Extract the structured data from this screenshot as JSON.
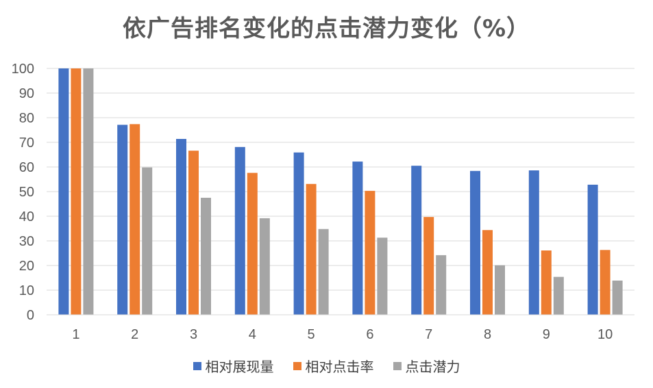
{
  "chart_data": {
    "type": "bar",
    "title": "依广告排名变化的点击潜力变化（%）",
    "categories": [
      "1",
      "2",
      "3",
      "4",
      "5",
      "6",
      "7",
      "8",
      "9",
      "10"
    ],
    "series": [
      {
        "name": "相对展现量",
        "color": "#4472C4",
        "values": [
          100,
          77.1,
          71.4,
          68.1,
          65.9,
          62.2,
          60.5,
          58.4,
          58.6,
          52.8
        ]
      },
      {
        "name": "相对点击率",
        "color": "#ED7D31",
        "values": [
          100,
          77.4,
          66.6,
          57.6,
          53.1,
          50.3,
          39.7,
          34.4,
          26.1,
          26.3
        ]
      },
      {
        "name": "点击潜力",
        "color": "#A5A5A5",
        "values": [
          100,
          59.8,
          47.5,
          39.2,
          34.8,
          31.3,
          24.2,
          20.1,
          15.4,
          13.9
        ]
      }
    ],
    "ylim": [
      0,
      100
    ],
    "yticks": [
      0,
      10,
      20,
      30,
      40,
      50,
      60,
      70,
      80,
      90,
      100
    ],
    "grid": true,
    "legend_position": "bottom"
  }
}
